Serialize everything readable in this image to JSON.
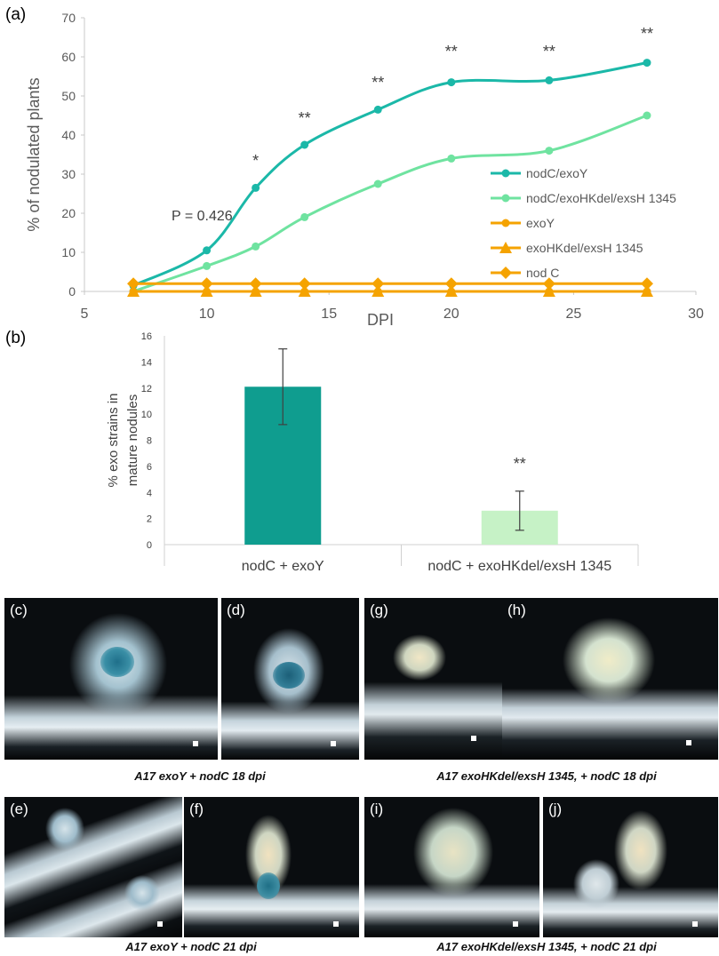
{
  "panel_a": {
    "label": "(a)",
    "p_value_text": "P = 0.426",
    "chart_data": {
      "type": "line",
      "xlabel": "DPI",
      "ylabel": "% of nodulated plants",
      "xlim": [
        5,
        30
      ],
      "ylim": [
        0,
        70
      ],
      "xticks": [
        5,
        10,
        15,
        20,
        25,
        30
      ],
      "yticks": [
        0,
        10,
        20,
        30,
        40,
        50,
        60,
        70
      ],
      "grid": "horizontal",
      "legend_position": "right",
      "series": [
        {
          "name": "nodC/exoY",
          "color": "#1bb8a8",
          "marker": "circle",
          "x": [
            7,
            10,
            12,
            14,
            17,
            20,
            24,
            28
          ],
          "y": [
            1.5,
            10.5,
            26.5,
            37.5,
            46.5,
            53.5,
            54,
            58.5
          ]
        },
        {
          "name": "nodC/exoHKdel/exsH 1345",
          "color": "#6fe3a0",
          "marker": "circle",
          "x": [
            7,
            10,
            12,
            14,
            17,
            20,
            24,
            28
          ],
          "y": [
            0,
            6.5,
            11.5,
            19,
            27.5,
            34,
            36,
            45
          ]
        },
        {
          "name": "exoY",
          "color": "#f5a300",
          "marker": "circle",
          "x": [
            7,
            10,
            12,
            14,
            17,
            20,
            24,
            28
          ],
          "y": [
            0,
            0,
            0,
            0,
            0,
            0,
            0,
            0
          ]
        },
        {
          "name": "exoHKdel/exsH 1345",
          "color": "#f5a300",
          "marker": "triangle",
          "x": [
            7,
            10,
            12,
            14,
            17,
            20,
            24,
            28
          ],
          "y": [
            0,
            0,
            0,
            0,
            0,
            0,
            0,
            0
          ]
        },
        {
          "name": "nod C",
          "color": "#f5a300",
          "marker": "diamond",
          "x": [
            7,
            10,
            12,
            14,
            17,
            20,
            24,
            28
          ],
          "y": [
            2,
            2,
            2,
            2,
            2,
            2,
            2,
            2
          ]
        }
      ],
      "annotations": [
        {
          "x": 12,
          "y": 32,
          "text": "*"
        },
        {
          "x": 14,
          "y": 43,
          "text": "**"
        },
        {
          "x": 17,
          "y": 52,
          "text": "**"
        },
        {
          "x": 20,
          "y": 60,
          "text": "**"
        },
        {
          "x": 24,
          "y": 60,
          "text": "**"
        },
        {
          "x": 28,
          "y": 64.5,
          "text": "**"
        }
      ]
    }
  },
  "panel_b": {
    "label": "(b)",
    "chart_data": {
      "type": "bar",
      "ylabel": "% exo strains in mature nodules",
      "ylim": [
        0,
        16
      ],
      "yticks": [
        0,
        2,
        4,
        6,
        8,
        10,
        12,
        14,
        16
      ],
      "categories": [
        "nodC + exoY",
        "nodC + exoHKdel/exsH 1345"
      ],
      "values": [
        12.1,
        2.6
      ],
      "error": [
        2.9,
        1.5
      ],
      "colors": [
        "#0f9d8f",
        "#c6f2c6"
      ],
      "annotations": [
        {
          "category": 1,
          "y": 5.8,
          "text": "**"
        }
      ]
    }
  },
  "photos": [
    {
      "label": "(c)"
    },
    {
      "label": "(d)"
    },
    {
      "label": "(g)"
    },
    {
      "label": "(h)"
    },
    {
      "label": "(e)"
    },
    {
      "label": "(f)"
    },
    {
      "label": "(i)"
    },
    {
      "label": "(j)"
    }
  ],
  "captions": {
    "row1_left": "A17 exoY + nodC 18 dpi",
    "row1_right": "A17 exoHKdel/exsH 1345,  + nodC 18 dpi",
    "row2_left": "A17 exoY + nodC 21 dpi",
    "row2_right": "A17 exoHKdel/exsH 1345,  + nodC 21 dpi"
  }
}
